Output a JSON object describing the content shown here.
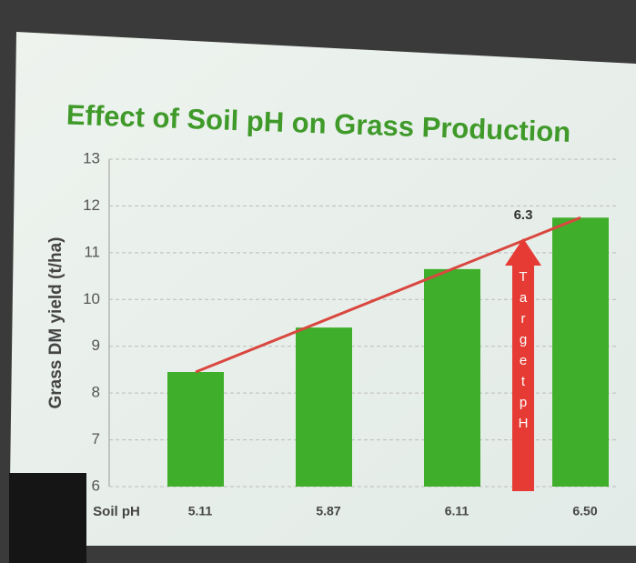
{
  "chart_data": {
    "type": "bar",
    "title": "Effect of Soil pH on Grass Production",
    "y_label": "Grass DM yield (t/ha)",
    "x_label": "Soil pH",
    "categories": [
      "5.11",
      "5.87",
      "6.11",
      "6.50"
    ],
    "values": [
      8.45,
      9.4,
      10.65,
      11.75
    ],
    "color": "#3fae2a",
    "ylim": [
      6,
      13
    ],
    "yticks": [
      6,
      7,
      8,
      9,
      10,
      11,
      12,
      13
    ],
    "grid": true,
    "trend_color": "#d9473f",
    "target_label": "6.3",
    "target_text": "Target pH",
    "target_color": "#e53b34"
  }
}
